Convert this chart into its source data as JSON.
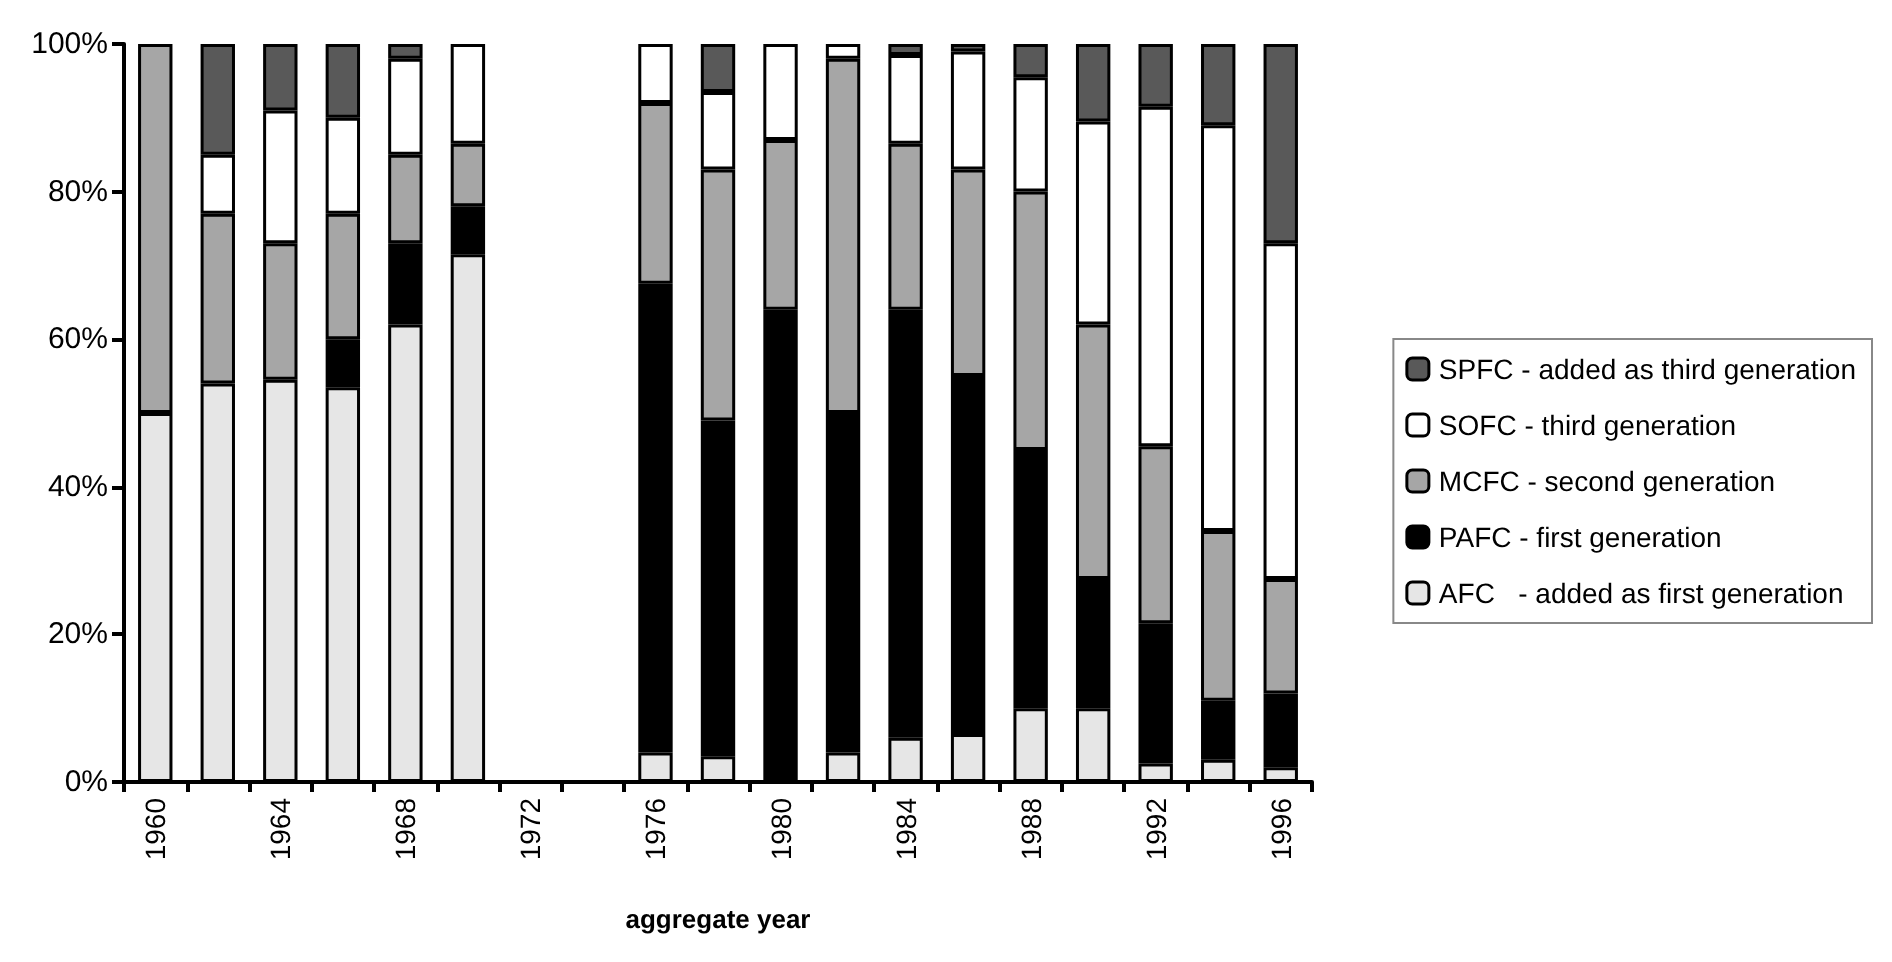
{
  "chart_data": {
    "type": "bar",
    "stacked": true,
    "xlabel": "aggregate year",
    "categories": [
      "1960",
      null,
      "1964",
      null,
      "1968",
      null,
      "1972",
      null,
      "1976",
      null,
      "1980",
      null,
      "1984",
      null,
      "1988",
      null,
      "1992",
      null,
      "1996"
    ],
    "series": [
      {
        "name": "AFC   - added as first generation",
        "color": "#e6e6e6",
        "values": [
          50,
          54,
          54.5,
          53.5,
          62,
          71.5,
          null,
          null,
          4,
          3.5,
          0,
          4,
          6,
          6.5,
          10,
          10,
          2.5,
          3,
          2
        ]
      },
      {
        "name": "PAFC - first generation",
        "color": "#000000",
        "values": [
          0,
          0,
          0,
          6.5,
          11,
          6.5,
          null,
          null,
          63.5,
          45.5,
          64,
          46,
          58,
          48.5,
          35,
          17.5,
          19,
          8,
          10
        ]
      },
      {
        "name": "MCFC - second generation",
        "color": "#a6a6a6",
        "values": [
          50,
          23,
          18.5,
          17,
          12,
          8.5,
          null,
          null,
          24.5,
          34,
          23,
          48,
          22.5,
          28,
          35,
          34.5,
          24,
          23,
          15.5
        ]
      },
      {
        "name": "SOFC - third generation",
        "color": "#ffffff",
        "values": [
          0,
          8,
          18,
          13,
          13,
          13.5,
          null,
          null,
          8,
          10.5,
          13,
          2,
          12,
          16,
          15.5,
          27.5,
          46,
          55,
          45.5
        ]
      },
      {
        "name": "SPFC - added as third generation",
        "color": "#595959",
        "values": [
          0,
          15,
          9,
          10,
          2,
          0,
          null,
          null,
          0,
          6.5,
          0,
          0,
          1.5,
          1,
          4.5,
          10.5,
          8.5,
          11,
          27
        ]
      }
    ],
    "ylim": [
      0,
      100
    ],
    "yticks": [
      {
        "value": 0,
        "label": "0%"
      },
      {
        "value": 20,
        "label": "20%"
      },
      {
        "value": 40,
        "label": "40%"
      },
      {
        "value": 60,
        "label": "60%"
      },
      {
        "value": 80,
        "label": "80%"
      },
      {
        "value": 100,
        "label": "100%"
      }
    ],
    "grid": false,
    "legend": "right"
  }
}
